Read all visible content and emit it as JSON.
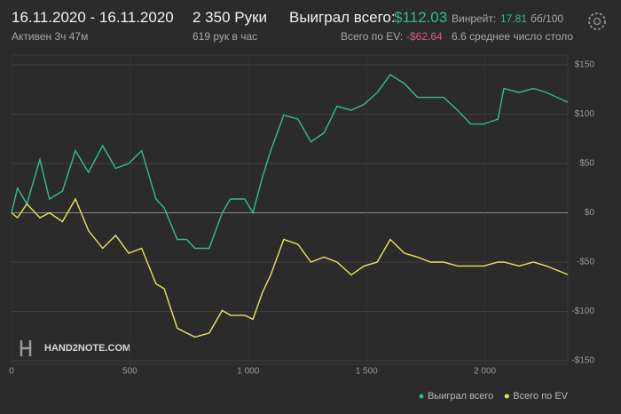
{
  "header": {
    "date_range": "16.11.2020 - 16.11.2020",
    "active": "Активен 3ч 47м",
    "hands": "2 350 Руки",
    "hands_per_hour": "619 рук в час",
    "won_label": "Выиграл всего:",
    "won_value": "$112.03",
    "ev_label": "Всего по EV:",
    "ev_value": "-$62.64",
    "winrate_label": "Винрейт:",
    "winrate_value": "17.81",
    "winrate_unit": "бб/100",
    "avg_tables": "6.6 среднее число столо",
    "logo": "HAND2NOTE.COM"
  },
  "chart_data": {
    "type": "line",
    "x": [
      0,
      25,
      65,
      120,
      160,
      215,
      270,
      325,
      385,
      440,
      495,
      550,
      610,
      645,
      700,
      740,
      775,
      835,
      890,
      925,
      985,
      1020,
      1060,
      1095,
      1150,
      1210,
      1265,
      1320,
      1375,
      1435,
      1490,
      1545,
      1600,
      1660,
      1715,
      1770,
      1825,
      1885,
      1940,
      1995,
      2055,
      2080,
      2145,
      2205,
      2260,
      2350
    ],
    "series": [
      {
        "name": "Выиграл всего",
        "color": "#2fbf86",
        "values": [
          0,
          25,
          9,
          54,
          14,
          22,
          63,
          41,
          68,
          45,
          50,
          63,
          14,
          5,
          -27,
          -27,
          -36,
          -36,
          0,
          14,
          14,
          0,
          36,
          63,
          99,
          95,
          72,
          81,
          108,
          104,
          110,
          122,
          140,
          131,
          117,
          117,
          117,
          104,
          90,
          90,
          95,
          126,
          122,
          126,
          122,
          112.03
        ]
      },
      {
        "name": "Всего по EV",
        "color": "#ece55a",
        "values": [
          0,
          -5,
          9,
          -5,
          0,
          -9,
          14,
          -18,
          -36,
          -23,
          -41,
          -36,
          -72,
          -77,
          -117,
          -122,
          -126,
          -122,
          -99,
          -104,
          -104,
          -108,
          -81,
          -63,
          -27,
          -32,
          -50,
          -45,
          -50,
          -63,
          -54,
          -50,
          -27,
          -41,
          -45,
          -50,
          -50,
          -54,
          -54,
          -54,
          -50,
          -50,
          -54,
          -50,
          -54,
          -62.64
        ]
      }
    ],
    "xlim": [
      0,
      2350
    ],
    "xticks": [
      0,
      500,
      {
        "value": 1000,
        "label": "1 000"
      },
      {
        "value": 1500,
        "label": "1 500"
      },
      {
        "value": 2000,
        "label": "2 000"
      }
    ],
    "ylim": [
      -150,
      150
    ],
    "yticks": [
      {
        "value": 150,
        "label": "$150"
      },
      {
        "value": 100,
        "label": "$100"
      },
      {
        "value": 50,
        "label": "$50"
      },
      {
        "value": 0,
        "label": "$0"
      },
      {
        "value": -50,
        "label": "-$50"
      },
      {
        "value": -100,
        "label": "-$100"
      },
      {
        "value": -150,
        "label": "-$150"
      }
    ],
    "grid": true,
    "legend": "bottom-right"
  }
}
